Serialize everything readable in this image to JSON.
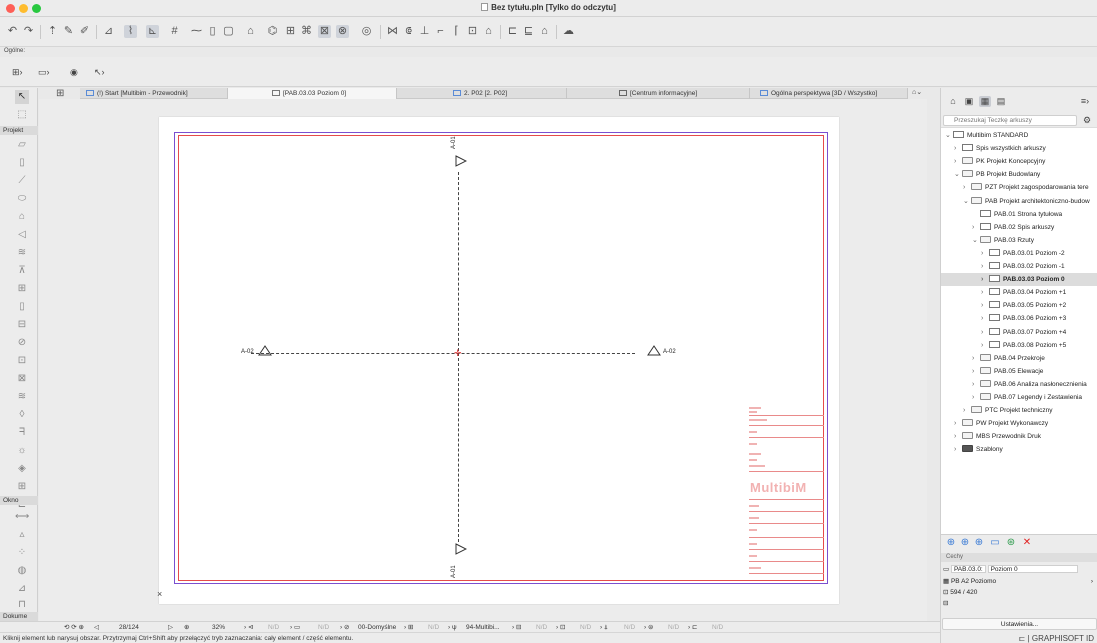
{
  "window": {
    "title": "Bez tytułu.pln [Tylko do odczytu]"
  },
  "toolbar": {
    "ogolne_label": "Ogólne:",
    "icons": [
      "undo-icon",
      "redo-icon",
      "pick-up-icon",
      "inject-icon",
      "eyedropper-icon",
      "dimension-tool-icon",
      "guide-line-icon",
      "snap-icon",
      "grid-icon",
      "trace-icon",
      "marquee-icon",
      "fit-icon",
      "layer-icon",
      "view-icon",
      "magic-wand-icon",
      "zoom-icon",
      "renovation-icon",
      "split-icon",
      "adjust-icon",
      "offset-icon",
      "fillet-icon",
      "array-icon",
      "elevation-icon",
      "push-pull-icon",
      "stretch-icon",
      "plan-icon",
      "publish-icon",
      "layout-icon"
    ]
  },
  "tabs": [
    {
      "label": "(!) Start [Multibim - Przewodnik]"
    },
    {
      "label": "[PAB.03.03 Poziom 0]"
    },
    {
      "label": "2. P02 [2. P02]"
    },
    {
      "label": "[Centrum informacyjne]"
    },
    {
      "label": "Ogólna perspektywa [3D / Wszystko]"
    }
  ],
  "toolbox": {
    "projekt_label": "Projekt",
    "okno_label": "Okno",
    "dokume_label": "Dokume"
  },
  "drawing": {
    "section_top": "A-01",
    "section_bottom": "A-01",
    "section_left": "A-02",
    "section_right": "A-02",
    "logo": "MultibiM"
  },
  "statusbar": {
    "page": "28/124",
    "zoom": "32%",
    "na1": "N/D",
    "na2": "N/D",
    "layer_combo": "00-Domyślne",
    "na3": "N/D",
    "pen_set": "94-Multibi...",
    "na4": "N/D",
    "na5": "N/D",
    "na6": "N/D",
    "na7": "N/D",
    "na8": "N/D"
  },
  "hint": "Kliknij element lub narysuj obszar. Przytrzymaj Ctrl+Shift aby przełączyć tryb zaznaczania: cały element / część elementu.",
  "navigator": {
    "search_placeholder": "Przeszukaj Teczkę arkuszy",
    "items": [
      {
        "label": "Multibim STANDARD",
        "level": 0,
        "expanded": true,
        "icon": "root"
      },
      {
        "label": "Spis wszystkich arkuszy",
        "level": 1,
        "expanded": false,
        "icon": "sheet"
      },
      {
        "label": "PK Projekt Koncepcyjny",
        "level": 1,
        "expanded": false,
        "icon": "folder"
      },
      {
        "label": "PB Projekt Budowlany",
        "level": 1,
        "expanded": true,
        "icon": "folder"
      },
      {
        "label": "PZT Projekt zagospodarowania tere",
        "level": 2,
        "expanded": false,
        "icon": "folder"
      },
      {
        "label": "PAB Projekt architektoniczno-budow",
        "level": 2,
        "expanded": true,
        "icon": "folder"
      },
      {
        "label": "PAB.01 Strona tytułowa",
        "level": 3,
        "expanded": null,
        "icon": "sheet"
      },
      {
        "label": "PAB.02 Spis arkuszy",
        "level": 3,
        "expanded": false,
        "icon": "sheet"
      },
      {
        "label": "PAB.03 Rzuty",
        "level": 3,
        "expanded": true,
        "icon": "folder"
      },
      {
        "label": "PAB.03.01 Poziom -2",
        "level": 4,
        "expanded": false,
        "icon": "sheet"
      },
      {
        "label": "PAB.03.02 Poziom -1",
        "level": 4,
        "expanded": false,
        "icon": "sheet"
      },
      {
        "label": "PAB.03.03 Poziom 0",
        "level": 4,
        "expanded": false,
        "icon": "sheet",
        "selected": true
      },
      {
        "label": "PAB.03.04 Poziom +1",
        "level": 4,
        "expanded": false,
        "icon": "sheet"
      },
      {
        "label": "PAB.03.05 Poziom +2",
        "level": 4,
        "expanded": false,
        "icon": "sheet"
      },
      {
        "label": "PAB.03.06 Poziom +3",
        "level": 4,
        "expanded": false,
        "icon": "sheet"
      },
      {
        "label": "PAB.03.07 Poziom +4",
        "level": 4,
        "expanded": false,
        "icon": "sheet"
      },
      {
        "label": "PAB.03.08 Poziom +5",
        "level": 4,
        "expanded": false,
        "icon": "sheet"
      },
      {
        "label": "PAB.04 Przekroje",
        "level": 3,
        "expanded": false,
        "icon": "folder"
      },
      {
        "label": "PAB.05 Elewacje",
        "level": 3,
        "expanded": false,
        "icon": "folder"
      },
      {
        "label": "PAB.06 Analiza nasłonecznienia",
        "level": 3,
        "expanded": false,
        "icon": "folder"
      },
      {
        "label": "PAB.07 Legendy i Zestawienia",
        "level": 3,
        "expanded": false,
        "icon": "folder"
      },
      {
        "label": "PTC Projekt techniczny",
        "level": 2,
        "expanded": false,
        "icon": "folder"
      },
      {
        "label": "PW Projekt Wykonawczy",
        "level": 1,
        "expanded": false,
        "icon": "folder"
      },
      {
        "label": "MBS Przewodnik Druk",
        "level": 1,
        "expanded": false,
        "icon": "folder"
      },
      {
        "label": "Szablony",
        "level": 1,
        "expanded": false,
        "icon": "folder-dark"
      }
    ]
  },
  "properties": {
    "header": "Cechy",
    "sheet_id": "PAB.03.0:",
    "sheet_name": "Poziom 0",
    "master": "PB A2 Poziomo",
    "size": "594 / 420",
    "settings_button": "Ustawienia...",
    "brand": "GRAPHISOFT ID"
  },
  "colors": {
    "frame_outer": "#7b4fd0",
    "frame_inner": "#e54b4b",
    "center_mark": "#dd2222",
    "logo": "#f2b2b2",
    "selection": "#dcdcdc"
  }
}
